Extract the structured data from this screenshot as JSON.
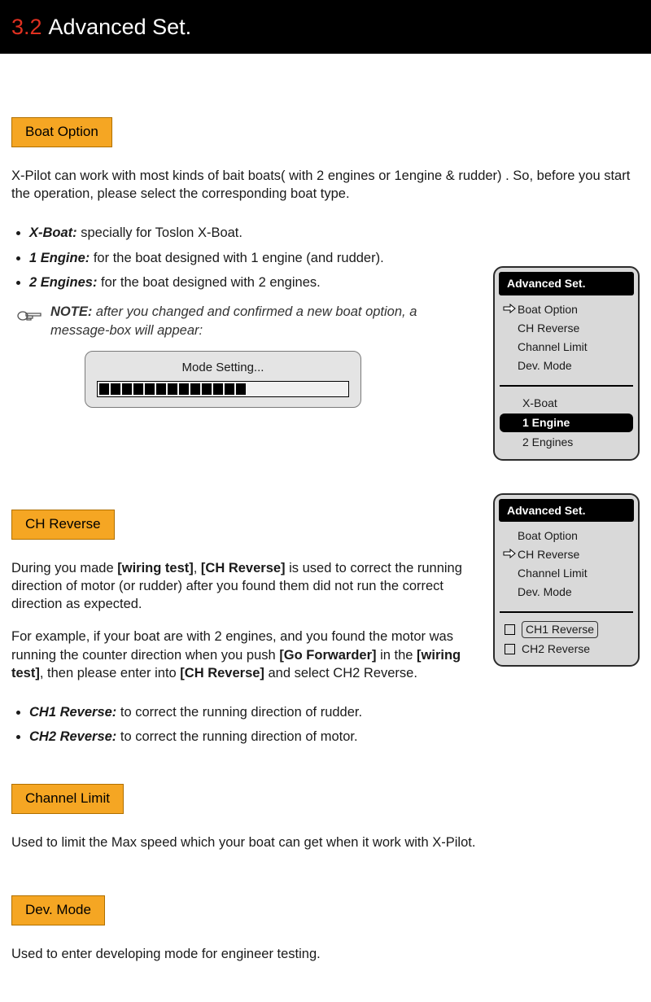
{
  "header": {
    "num": "3.2",
    "title": "Advanced Set."
  },
  "colors": {
    "orange": "#f5a623",
    "red": "#e03020",
    "black": "#000000",
    "panel_bg": "#d9d9d9"
  },
  "boatOption": {
    "label": "Boat Option",
    "intro": "X-Pilot can work with most kinds of bait boats( with 2 engines or 1engine & rudder) . So, before you start the operation, please select the corresponding boat type.",
    "items": [
      {
        "name": "X-Boat:",
        "desc": " specially for Toslon X-Boat."
      },
      {
        "name": "1 Engine:",
        "desc": " for the boat designed with 1 engine (and rudder)."
      },
      {
        "name": "2 Engines:",
        "desc": " for the boat designed with 2 engines."
      }
    ],
    "noteLabel": "NOTE:",
    "noteText": " after you changed and confirmed a new boat option, a message-box will appear:",
    "modeTitle": "Mode Setting...",
    "progressBlocks": 13
  },
  "menu1": {
    "title": "Advanced Set.",
    "items": [
      "Boat Option",
      "CH Reverse",
      "Channel Limit",
      "Dev. Mode"
    ],
    "pointerIndex": 0,
    "options": [
      "X-Boat",
      "1 Engine",
      "2 Engines"
    ],
    "selectedOption": 1
  },
  "chReverse": {
    "label": "CH Reverse",
    "p1a": "During you made ",
    "p1b": "[wiring test]",
    "p1c": ", ",
    "p1d": "[CH Reverse]",
    "p1e": " is used to correct the running direction of motor (or rudder) after you found them did not run the correct direction as expected.",
    "p2a": "For example, if your boat are with 2 engines, and you found the motor was running the counter direction when you push ",
    "p2b": "[Go Forwarder]",
    "p2c": " in the ",
    "p2d": "[wiring test]",
    "p2e": ", then please enter into ",
    "p2f": "[CH Reverse]",
    "p2g": " and select CH2 Reverse.",
    "items": [
      {
        "name": "CH1 Reverse:",
        "desc": " to correct the running direction of rudder."
      },
      {
        "name": "CH2 Reverse:",
        "desc": " to correct the running direction of motor."
      }
    ]
  },
  "menu2": {
    "title": "Advanced Set.",
    "items": [
      "Boat Option",
      "CH Reverse",
      "Channel Limit",
      "Dev. Mode"
    ],
    "pointerIndex": 1,
    "checkboxes": [
      "CH1 Reverse",
      "CH2 Reverse"
    ],
    "boxedIndex": 0
  },
  "channelLimit": {
    "label": "Channel Limit",
    "text": "Used to limit the Max speed which your boat can get when it work with X-Pilot."
  },
  "devMode": {
    "label": "Dev. Mode",
    "text": "Used to enter developing mode for engineer testing."
  }
}
